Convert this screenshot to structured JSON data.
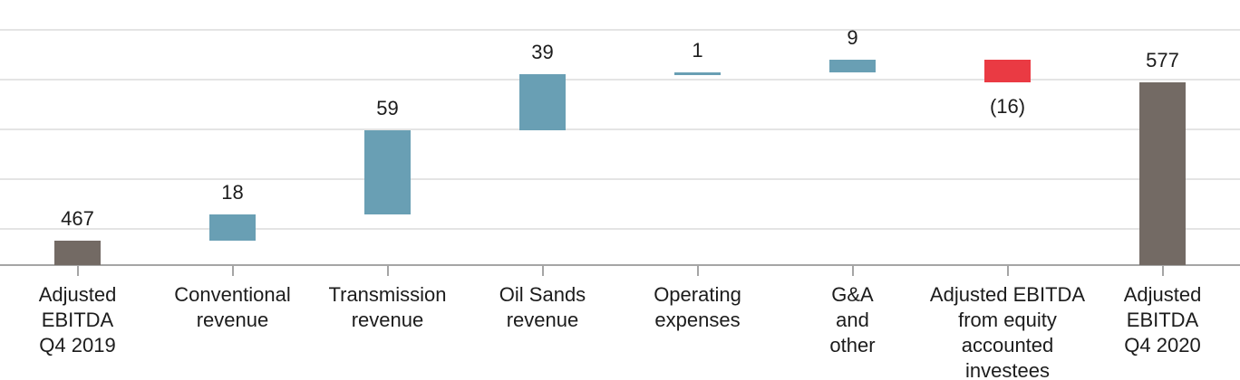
{
  "chart_data": {
    "type": "bar",
    "subtype": "waterfall",
    "title": "",
    "xlabel": "",
    "ylabel": "",
    "grid": true,
    "legend": false,
    "ylim": [
      450,
      634
    ],
    "categories": [
      "Adjusted\nEBITDA\nQ4 2019",
      "Conventional\nrevenue",
      "Transmission\nrevenue",
      "Oil Sands\nrevenue",
      "Operating\nexpenses",
      "G&A\nand\nother",
      "Adjusted EBITDA\nfrom equity\naccounted\ninvestees",
      "Adjusted\nEBITDA\nQ4 2020"
    ],
    "items": [
      {
        "category": "Adjusted\nEBITDA\nQ4 2019",
        "value": 467,
        "label": "467",
        "kind": "total"
      },
      {
        "category": "Conventional\nrevenue",
        "value": 18,
        "label": "18",
        "kind": "increase"
      },
      {
        "category": "Transmission\nrevenue",
        "value": 59,
        "label": "59",
        "kind": "increase"
      },
      {
        "category": "Oil Sands\nrevenue",
        "value": 39,
        "label": "39",
        "kind": "increase"
      },
      {
        "category": "Operating\nexpenses",
        "value": 1,
        "label": "1",
        "kind": "increase"
      },
      {
        "category": "G&A\nand\nother",
        "value": 9,
        "label": "9",
        "kind": "increase"
      },
      {
        "category": "Adjusted EBITDA\nfrom equity\naccounted\ninvestees",
        "value": -16,
        "label": "(16)",
        "kind": "decrease"
      },
      {
        "category": "Adjusted\nEBITDA\nQ4 2020",
        "value": 577,
        "label": "577",
        "kind": "total"
      }
    ],
    "colors": {
      "total": "#736a64",
      "increase": "#699fb4",
      "decrease": "#ea3a43",
      "gridline": "#e4e4e4",
      "axis": "#a5a5a5",
      "text": "#1c1c1c"
    }
  }
}
